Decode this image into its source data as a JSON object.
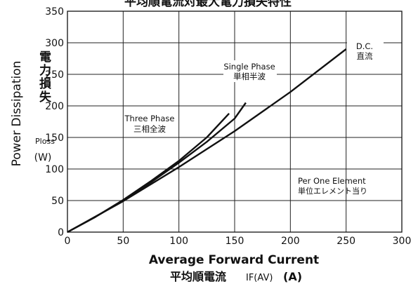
{
  "chart_data": {
    "type": "line",
    "title": "平均順電流対最大電力損失特性",
    "xlabel": "Average Forward Current",
    "xlabel_jp": "平均順電流",
    "xlabel_symbol": "IF(AV)",
    "xlabel_unit": "(A)",
    "ylabel": "Power Dissipation",
    "ylabel_jp": "電力損失",
    "ylabel_symbol": "Ploss",
    "ylabel_unit": "(W)",
    "xlim": [
      0,
      300
    ],
    "ylim": [
      0,
      350
    ],
    "x_ticks": [
      0,
      50,
      100,
      150,
      200,
      250,
      300
    ],
    "y_ticks": [
      0,
      50,
      100,
      150,
      200,
      250,
      300,
      350
    ],
    "grid": true,
    "annotation": {
      "line1": "Per One Element",
      "line2": "単位エレメント当り"
    },
    "series": [
      {
        "name": "Three Phase",
        "name_jp": "三相全波",
        "x": [
          0,
          25,
          50,
          75,
          100,
          125,
          145
        ],
        "y": [
          0,
          24,
          51,
          81,
          113,
          150,
          188
        ]
      },
      {
        "name": "Single Phase",
        "name_jp": "単相半波",
        "x": [
          0,
          25,
          50,
          75,
          100,
          125,
          150,
          160
        ],
        "y": [
          0,
          24,
          50,
          79,
          110,
          143,
          180,
          205
        ]
      },
      {
        "name": "D.C.",
        "name_jp": "直流",
        "x": [
          0,
          50,
          100,
          150,
          200,
          250
        ],
        "y": [
          0,
          49,
          103,
          160,
          222,
          290
        ]
      }
    ]
  }
}
